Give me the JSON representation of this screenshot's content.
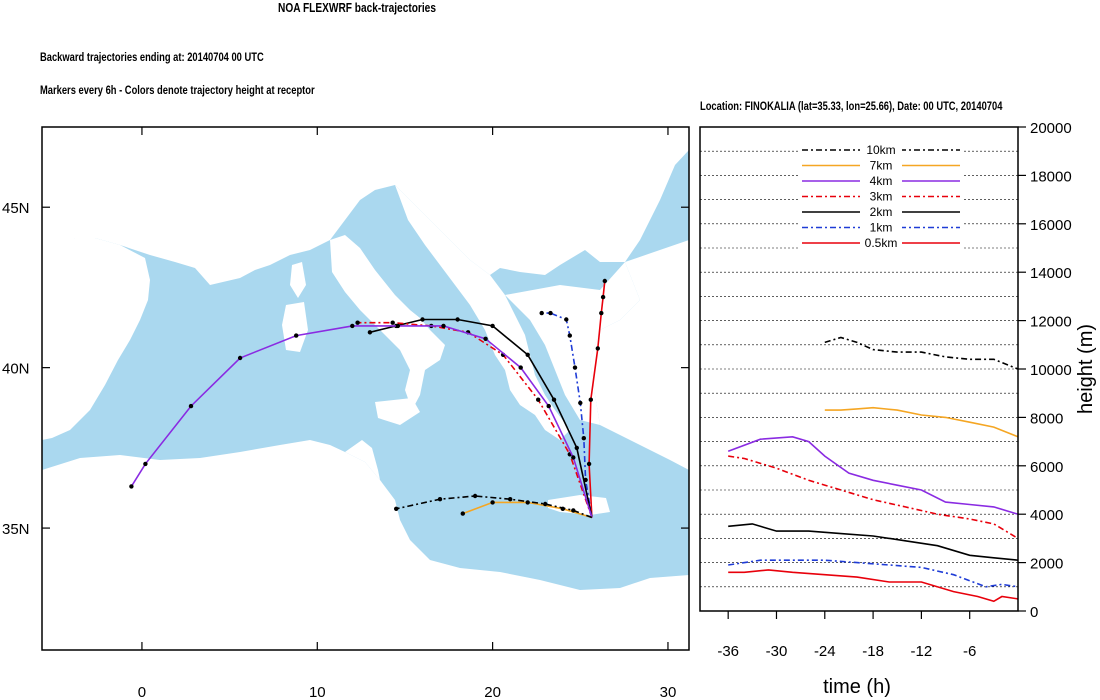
{
  "header": {
    "title": "NOA FLEXWRF back-trajectories",
    "subtitle1": "Backward trajectories ending at: 20140704  00 UTC",
    "subtitle2": "Markers every 6h - Colors denote trajectory height at receptor",
    "location": "Location: FINOKALIA (lat=35.33,  lon=25.66), Date: 00 UTC, 20140704"
  },
  "colors": {
    "sea": "#aad8ef",
    "land": "#ffffff"
  },
  "chart_data": [
    {
      "type": "line",
      "name": "map",
      "x_ticks": [
        "0",
        "10",
        "20",
        "30"
      ],
      "y_ticks": [
        "35N",
        "40N",
        "45N"
      ],
      "xlim": [
        -5.7,
        31.2
      ],
      "ylim": [
        31.2,
        47.5
      ],
      "receptor": {
        "lon": 25.66,
        "lat": 35.33
      },
      "series": [
        {
          "name": "0.5km",
          "color": "#e8000b",
          "dash": "solid",
          "lon": [
            25.66,
            25.5,
            25.6,
            26.0,
            26.2,
            26.3,
            26.4
          ],
          "lat": [
            35.33,
            37.0,
            39.0,
            40.6,
            41.7,
            42.2,
            42.7
          ]
        },
        {
          "name": "1km",
          "color": "#1f3cd6",
          "dash": "dashdot",
          "lon": [
            25.66,
            25.3,
            25.2,
            25.0,
            24.7,
            24.4,
            24.2,
            23.3,
            22.8
          ],
          "lat": [
            35.33,
            36.5,
            37.8,
            38.9,
            40.0,
            41.0,
            41.5,
            41.7,
            41.7
          ]
        },
        {
          "name": "2km",
          "color": "#000000",
          "dash": "solid",
          "lon": [
            25.66,
            24.8,
            23.5,
            22.0,
            20.0,
            18.0,
            16.0,
            14.5,
            13.0
          ],
          "lat": [
            35.33,
            37.5,
            39.0,
            40.4,
            41.3,
            41.5,
            41.5,
            41.3,
            41.1
          ]
        },
        {
          "name": "3km",
          "color": "#e8000b",
          "dash": "dashdot",
          "lon": [
            25.66,
            24.4,
            22.6,
            20.6,
            18.6,
            16.5,
            14.3,
            12.3
          ],
          "lat": [
            35.33,
            37.3,
            39.0,
            40.4,
            41.1,
            41.3,
            41.4,
            41.4
          ]
        },
        {
          "name": "4km",
          "color": "#8a2be2",
          "dash": "solid",
          "lon": [
            25.66,
            24.6,
            23.2,
            21.6,
            19.6,
            17.2,
            14.6,
            12.0,
            8.8,
            5.6,
            2.8,
            0.2,
            -0.6
          ],
          "lat": [
            35.33,
            37.2,
            38.8,
            40.0,
            40.9,
            41.3,
            41.3,
            41.3,
            41.0,
            40.3,
            38.8,
            37.0,
            36.3
          ]
        },
        {
          "name": "7km",
          "color": "#f5a623",
          "dash": "solid",
          "lon": [
            25.66,
            24.0,
            22.0,
            20.0,
            18.3
          ],
          "lat": [
            35.33,
            35.6,
            35.8,
            35.8,
            35.45
          ]
        },
        {
          "name": "10km",
          "color": "#000000",
          "dash": "dashdot",
          "lon": [
            25.66,
            24.6,
            23.0,
            21.0,
            19.0,
            17.0,
            14.5
          ],
          "lat": [
            35.33,
            35.55,
            35.75,
            35.9,
            36.0,
            35.9,
            35.6
          ]
        }
      ]
    },
    {
      "type": "line",
      "name": "height-time",
      "xlabel": "time (h)",
      "ylabel": "height (m)",
      "x_ticks": [
        "-36",
        "-30",
        "-24",
        "-18",
        "-12",
        "-6"
      ],
      "y_ticks": [
        "0",
        "2000",
        "4000",
        "6000",
        "8000",
        "10000",
        "12000",
        "14000",
        "16000",
        "18000",
        "20000"
      ],
      "xlim": [
        -39.5,
        0
      ],
      "ylim": [
        0,
        20000
      ],
      "legend_labels": [
        "10km",
        "7km",
        "4km",
        "3km",
        "2km",
        "1km",
        "0.5km"
      ],
      "series": [
        {
          "name": "10km",
          "color": "#000000",
          "dash": "dashdot",
          "x": [
            -24,
            -22,
            -20,
            -18,
            -15,
            -12,
            -9,
            -6,
            -3,
            0
          ],
          "y": [
            11100,
            11300,
            11100,
            10800,
            10700,
            10700,
            10500,
            10400,
            10400,
            10000
          ]
        },
        {
          "name": "7km",
          "color": "#f5a623",
          "dash": "solid",
          "x": [
            -24,
            -22,
            -20,
            -18,
            -15,
            -12,
            -9,
            -6,
            -3,
            0
          ],
          "y": [
            8300,
            8300,
            8350,
            8400,
            8300,
            8100,
            8000,
            7800,
            7600,
            7200
          ]
        },
        {
          "name": "4km",
          "color": "#8a2be2",
          "dash": "solid",
          "x": [
            -36,
            -32,
            -28,
            -26,
            -24,
            -21,
            -18,
            -15,
            -12,
            -9,
            -6,
            -3,
            0
          ],
          "y": [
            6600,
            7100,
            7200,
            7000,
            6400,
            5700,
            5400,
            5200,
            5000,
            4500,
            4400,
            4300,
            4000
          ]
        },
        {
          "name": "3km",
          "color": "#e8000b",
          "dash": "dashdot",
          "x": [
            -36,
            -34,
            -30,
            -26,
            -22,
            -18,
            -14,
            -10,
            -6,
            -3,
            0
          ],
          "y": [
            6400,
            6300,
            5900,
            5400,
            5000,
            4600,
            4300,
            4000,
            3800,
            3600,
            3000
          ]
        },
        {
          "name": "2km",
          "color": "#000000",
          "dash": "solid",
          "x": [
            -36,
            -33,
            -30,
            -26,
            -22,
            -18,
            -14,
            -10,
            -6,
            -3,
            0
          ],
          "y": [
            3500,
            3600,
            3300,
            3300,
            3200,
            3100,
            2900,
            2700,
            2300,
            2200,
            2100
          ]
        },
        {
          "name": "1km",
          "color": "#1f3cd6",
          "dash": "dashdot",
          "x": [
            -36,
            -32,
            -28,
            -24,
            -20,
            -16,
            -12,
            -8,
            -4,
            -2,
            0
          ],
          "y": [
            1900,
            2100,
            2100,
            2100,
            2000,
            1900,
            1800,
            1500,
            1000,
            1100,
            1000
          ]
        },
        {
          "name": "0.5km",
          "color": "#e8000b",
          "dash": "solid",
          "x": [
            -36,
            -34,
            -31,
            -28,
            -24,
            -20,
            -16,
            -12,
            -8,
            -5,
            -3,
            -2,
            0
          ],
          "y": [
            1600,
            1600,
            1700,
            1600,
            1500,
            1400,
            1200,
            1200,
            800,
            600,
            400,
            600,
            500
          ]
        }
      ]
    }
  ]
}
